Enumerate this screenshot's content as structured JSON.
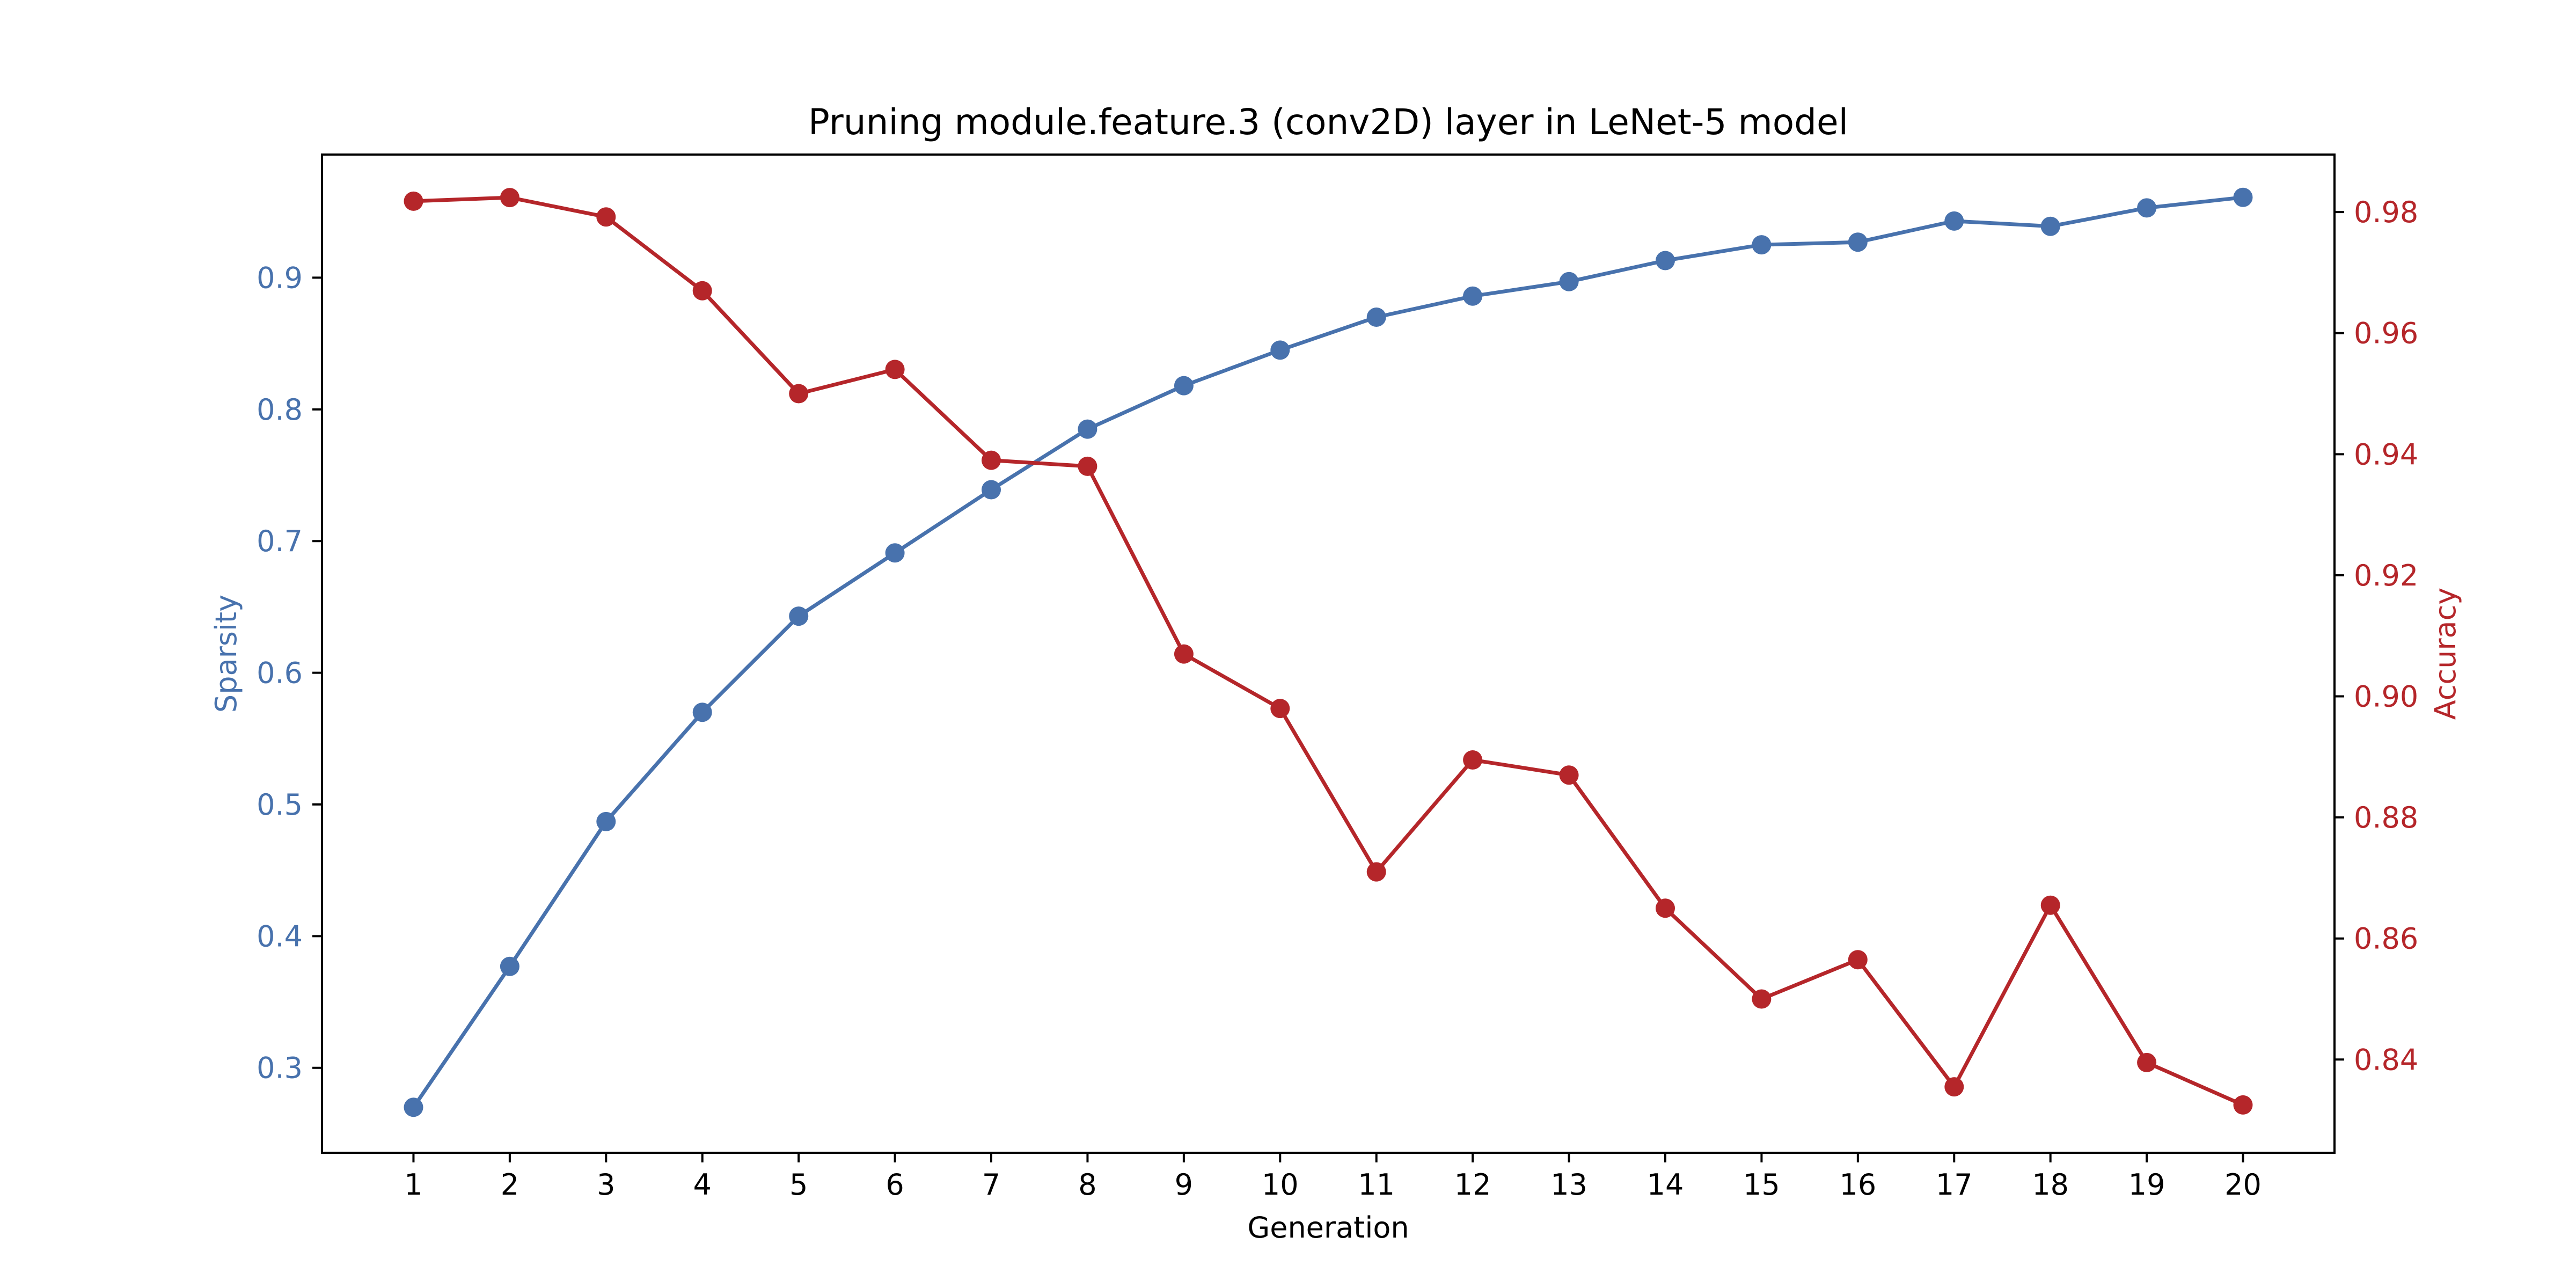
{
  "chart_data": {
    "type": "line",
    "title": "Pruning module.feature.3 (conv2D) layer in LeNet-5 model",
    "xlabel": "Generation",
    "x": [
      1,
      2,
      3,
      4,
      5,
      6,
      7,
      8,
      9,
      10,
      11,
      12,
      13,
      14,
      15,
      16,
      17,
      18,
      19,
      20
    ],
    "x_ticks": [
      "1",
      "2",
      "3",
      "4",
      "5",
      "6",
      "7",
      "8",
      "9",
      "10",
      "11",
      "12",
      "13",
      "14",
      "15",
      "16",
      "17",
      "18",
      "19",
      "20"
    ],
    "xlim": [
      0.05,
      20.95
    ],
    "grid": false,
    "left_axis": {
      "label": "Sparsity",
      "color": "#4872ad",
      "ylim": [
        0.2355,
        0.9935
      ],
      "ticks": [
        "0.3",
        "0.4",
        "0.5",
        "0.6",
        "0.7",
        "0.8",
        "0.9"
      ],
      "tick_values": [
        0.3,
        0.4,
        0.5,
        0.6,
        0.7,
        0.8,
        0.9
      ]
    },
    "right_axis": {
      "label": "Accuracy",
      "color": "#b5262a",
      "ylim": [
        0.8246,
        0.9895
      ],
      "ticks": [
        "0.84",
        "0.86",
        "0.88",
        "0.90",
        "0.92",
        "0.94",
        "0.96",
        "0.98"
      ],
      "tick_values": [
        0.84,
        0.86,
        0.88,
        0.9,
        0.92,
        0.94,
        0.96,
        0.98
      ]
    },
    "series": [
      {
        "axis": "left",
        "color": "#4872ad",
        "values": [
          0.27,
          0.377,
          0.487,
          0.57,
          0.643,
          0.691,
          0.739,
          0.785,
          0.818,
          0.845,
          0.87,
          0.886,
          0.897,
          0.913,
          0.925,
          0.927,
          0.943,
          0.939,
          0.953,
          0.961
        ]
      },
      {
        "axis": "right",
        "color": "#b5262a",
        "values": [
          0.9818,
          0.9824,
          0.9792,
          0.967,
          0.95,
          0.954,
          0.939,
          0.938,
          0.907,
          0.898,
          0.871,
          0.8895,
          0.887,
          0.865,
          0.85,
          0.8565,
          0.8355,
          0.8655,
          0.8395,
          0.8325
        ]
      }
    ]
  }
}
